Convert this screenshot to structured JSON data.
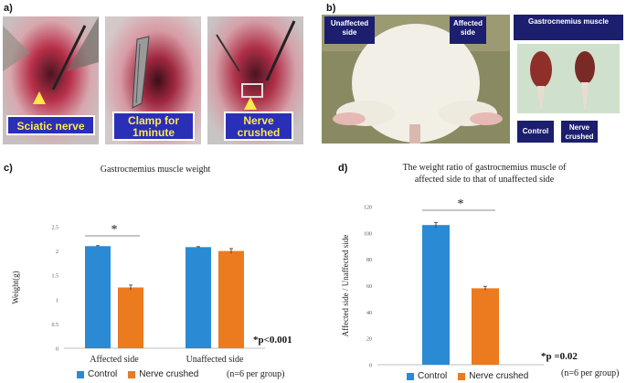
{
  "panels": {
    "a": "a)",
    "b": "b)",
    "c": "c)",
    "d": "d)"
  },
  "photos_a": {
    "label1": "Sciatic nerve",
    "label2": "Clamp for 1minute",
    "label3": "Nerve crushed"
  },
  "photo_b": {
    "unaffected": "Unaffected side",
    "affected": "Affected side",
    "muscle": "Gastrocnemius muscle",
    "control": "Control",
    "nerve_crushed": "Nerve crushed"
  },
  "colors": {
    "control": "#2a8bd4",
    "nerve_crushed": "#ec7a1f"
  },
  "legend": {
    "control": "Control",
    "nerve_crushed": "Nerve crushed"
  },
  "chart_data": [
    {
      "type": "bar",
      "title": "Gastrocnemius muscle  weight",
      "ylabel": "Weight(g)",
      "xlabel": "",
      "ylim": [
        0,
        2.5
      ],
      "yticks": [
        "0",
        "0.5",
        "1",
        "1.5",
        "2",
        "2.5"
      ],
      "categories": [
        "Affected side",
        "Unaffected side"
      ],
      "series": [
        {
          "name": "Control",
          "values": [
            2.1,
            2.08
          ],
          "errors": [
            0.01,
            0.01
          ]
        },
        {
          "name": "Nerve crushed",
          "values": [
            1.25,
            2.0
          ],
          "errors": [
            0.05,
            0.05
          ]
        }
      ],
      "significance": {
        "star": "*",
        "note": "*p<0.001"
      },
      "footnote": "(n=6 per group)"
    },
    {
      "type": "bar",
      "title": "The weight ratio of  gastrocnemius muscle of affected side to that of unaffected side",
      "title_line1": "The weight ratio of  gastrocnemius muscle of",
      "title_line2": "affected side to that of unaffected side",
      "ylabel": "Affected side / Unaffected side",
      "xlabel": "",
      "ylim": [
        0,
        120
      ],
      "yticks": [
        "0",
        "20",
        "40",
        "60",
        "80",
        "100",
        "120"
      ],
      "categories": [
        ""
      ],
      "series": [
        {
          "name": "Control",
          "values": [
            106
          ],
          "errors": [
            2
          ]
        },
        {
          "name": "Nerve crushed",
          "values": [
            58
          ],
          "errors": [
            1.5
          ]
        }
      ],
      "significance": {
        "star": "*",
        "note": "*p =0.02"
      },
      "footnote": "(n=6 per group)"
    }
  ]
}
